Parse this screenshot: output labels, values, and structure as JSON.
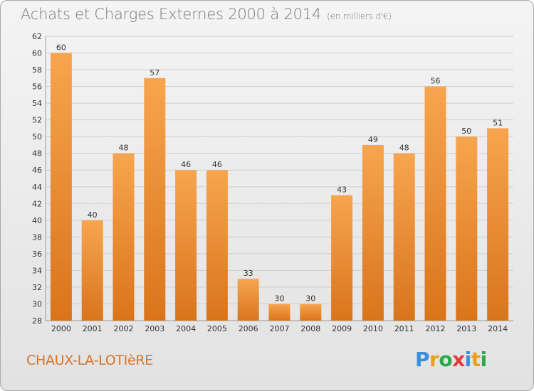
{
  "title": "Achats et Charges Externes 2000 à 2014",
  "subtitle": "(en milliers d'€)",
  "commune": "CHAUX-LA-LOTIèRE",
  "logo": [
    "P",
    "r",
    "o",
    "x",
    "i",
    "t",
    "i"
  ],
  "logo_colors": [
    "#3a8fd8",
    "#e8a01c",
    "#2aa84a",
    "#e23c3c",
    "#3a8fd8",
    "#e8a01c",
    "#2aa84a"
  ],
  "colors": {
    "bar_light": "#f7a54e",
    "bar_dark": "#d9741c",
    "grid": "#cfcfcf"
  },
  "chart_data": {
    "type": "bar",
    "title": "Achats et Charges Externes 2000 à 2014",
    "categories": [
      "2000",
      "2001",
      "2002",
      "2003",
      "2004",
      "2005",
      "2006",
      "2007",
      "2008",
      "2009",
      "2010",
      "2011",
      "2012",
      "2013",
      "2014"
    ],
    "values": [
      60,
      40,
      48,
      57,
      46,
      46,
      33,
      30,
      30,
      43,
      49,
      48,
      56,
      50,
      51
    ],
    "ylim": [
      28,
      62
    ],
    "yticks": [
      28,
      30,
      32,
      34,
      36,
      38,
      40,
      42,
      44,
      46,
      48,
      50,
      52,
      54,
      56,
      58,
      60,
      62
    ],
    "grid": true
  }
}
